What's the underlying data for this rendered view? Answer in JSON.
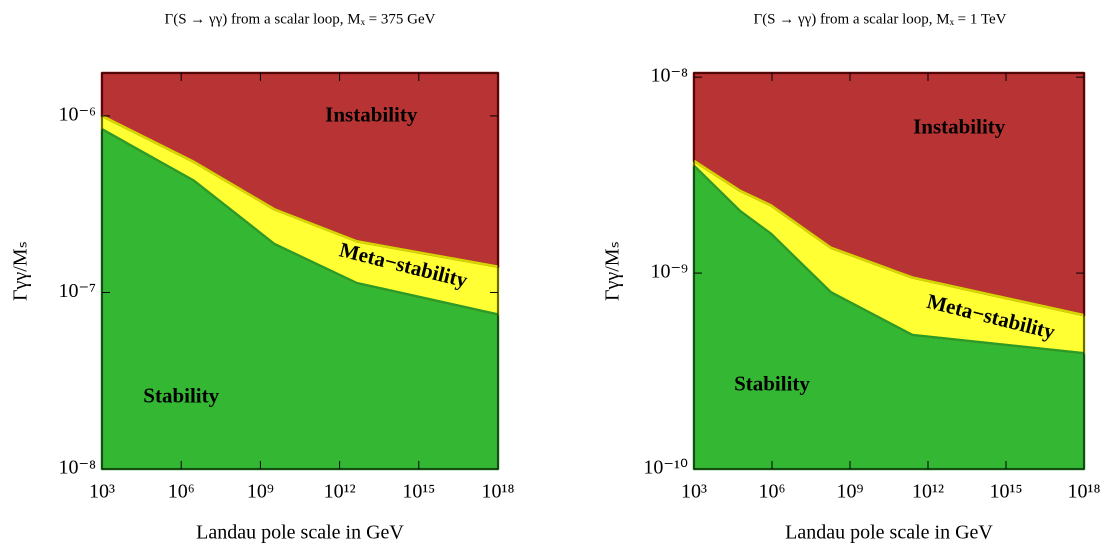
{
  "chart_data": [
    {
      "type": "area",
      "title": "Γ(S → γγ) from a scalar loop, Mₓ = 375 GeV",
      "xlabel": "Landau pole scale in GeV",
      "ylabel": "Γγγ/Mₛ",
      "log_x": true,
      "log_y": true,
      "xlim": [
        1000,
        1e+18
      ],
      "ylim": [
        1e-08,
        1.75e-06
      ],
      "xticks": [
        {
          "value": 1000,
          "label": "10³"
        },
        {
          "value": 1000000.0,
          "label": "10⁶"
        },
        {
          "value": 1000000000.0,
          "label": "10⁹"
        },
        {
          "value": 1000000000000.0,
          "label": "10¹²"
        },
        {
          "value": 1000000000000000.0,
          "label": "10¹⁵"
        },
        {
          "value": 1e+18,
          "label": "10¹⁸"
        }
      ],
      "yticks": [
        {
          "value": 1e-08,
          "label": "10⁻⁸"
        },
        {
          "value": 1e-07,
          "label": "10⁻⁷"
        },
        {
          "value": 1e-06,
          "label": "10⁻⁶"
        }
      ],
      "x": [
        1000,
        3000000.0,
        3400000000.0,
        4500000000000.0,
        1e+18
      ],
      "series": [
        {
          "name": "Stability",
          "color": "#34b834",
          "edgecolor": "#2a9a2a",
          "values": [
            8.4e-07,
            4.3e-07,
            1.88e-07,
            1.13e-07,
            7.5e-08
          ]
        },
        {
          "name": "Meta−stability",
          "color": "#ffff33",
          "edgecolor": "#d6d600",
          "values": [
            1e-06,
            5.5e-07,
            2.96e-07,
            1.95e-07,
            1.4e-07
          ]
        },
        {
          "name": "Instability",
          "color": "#b83434",
          "edgecolor": "#a01010"
        }
      ]
    },
    {
      "type": "area",
      "title": "Γ(S → γγ) from a scalar loop, Mₓ = 1 TeV",
      "xlabel": "Landau pole scale in GeV",
      "ylabel": "Γγγ/Mₛ",
      "log_x": true,
      "log_y": true,
      "xlim": [
        1000,
        1e+18
      ],
      "ylim": [
        1e-10,
        1.05e-08
      ],
      "xticks": [
        {
          "value": 1000,
          "label": "10³"
        },
        {
          "value": 1000000.0,
          "label": "10⁶"
        },
        {
          "value": 1000000000.0,
          "label": "10⁹"
        },
        {
          "value": 1000000000000.0,
          "label": "10¹²"
        },
        {
          "value": 1000000000000000.0,
          "label": "10¹⁵"
        },
        {
          "value": 1e+18,
          "label": "10¹⁸"
        }
      ],
      "yticks": [
        {
          "value": 1e-10,
          "label": "10⁻¹⁰"
        },
        {
          "value": 1e-09,
          "label": "10⁻⁹"
        },
        {
          "value": 1e-08,
          "label": "10⁻⁸"
        }
      ],
      "x": [
        1000,
        60000.0,
        900000.0,
        180000000.0,
        250000000000.0,
        1e+18
      ],
      "series": [
        {
          "name": "Stability",
          "color": "#34b834",
          "edgecolor": "#2a9a2a",
          "values": [
            3.53e-09,
            2.07e-09,
            1.59e-09,
            8e-10,
            4.83e-10,
            3.9e-10
          ]
        },
        {
          "name": "Meta−stability",
          "color": "#ffff33",
          "edgecolor": "#d6d600",
          "values": [
            3.74e-09,
            2.63e-09,
            2.22e-09,
            1.35e-09,
            9.5e-10,
            6.1e-10
          ]
        },
        {
          "name": "Instability",
          "color": "#b83434",
          "edgecolor": "#a01010"
        }
      ]
    }
  ]
}
